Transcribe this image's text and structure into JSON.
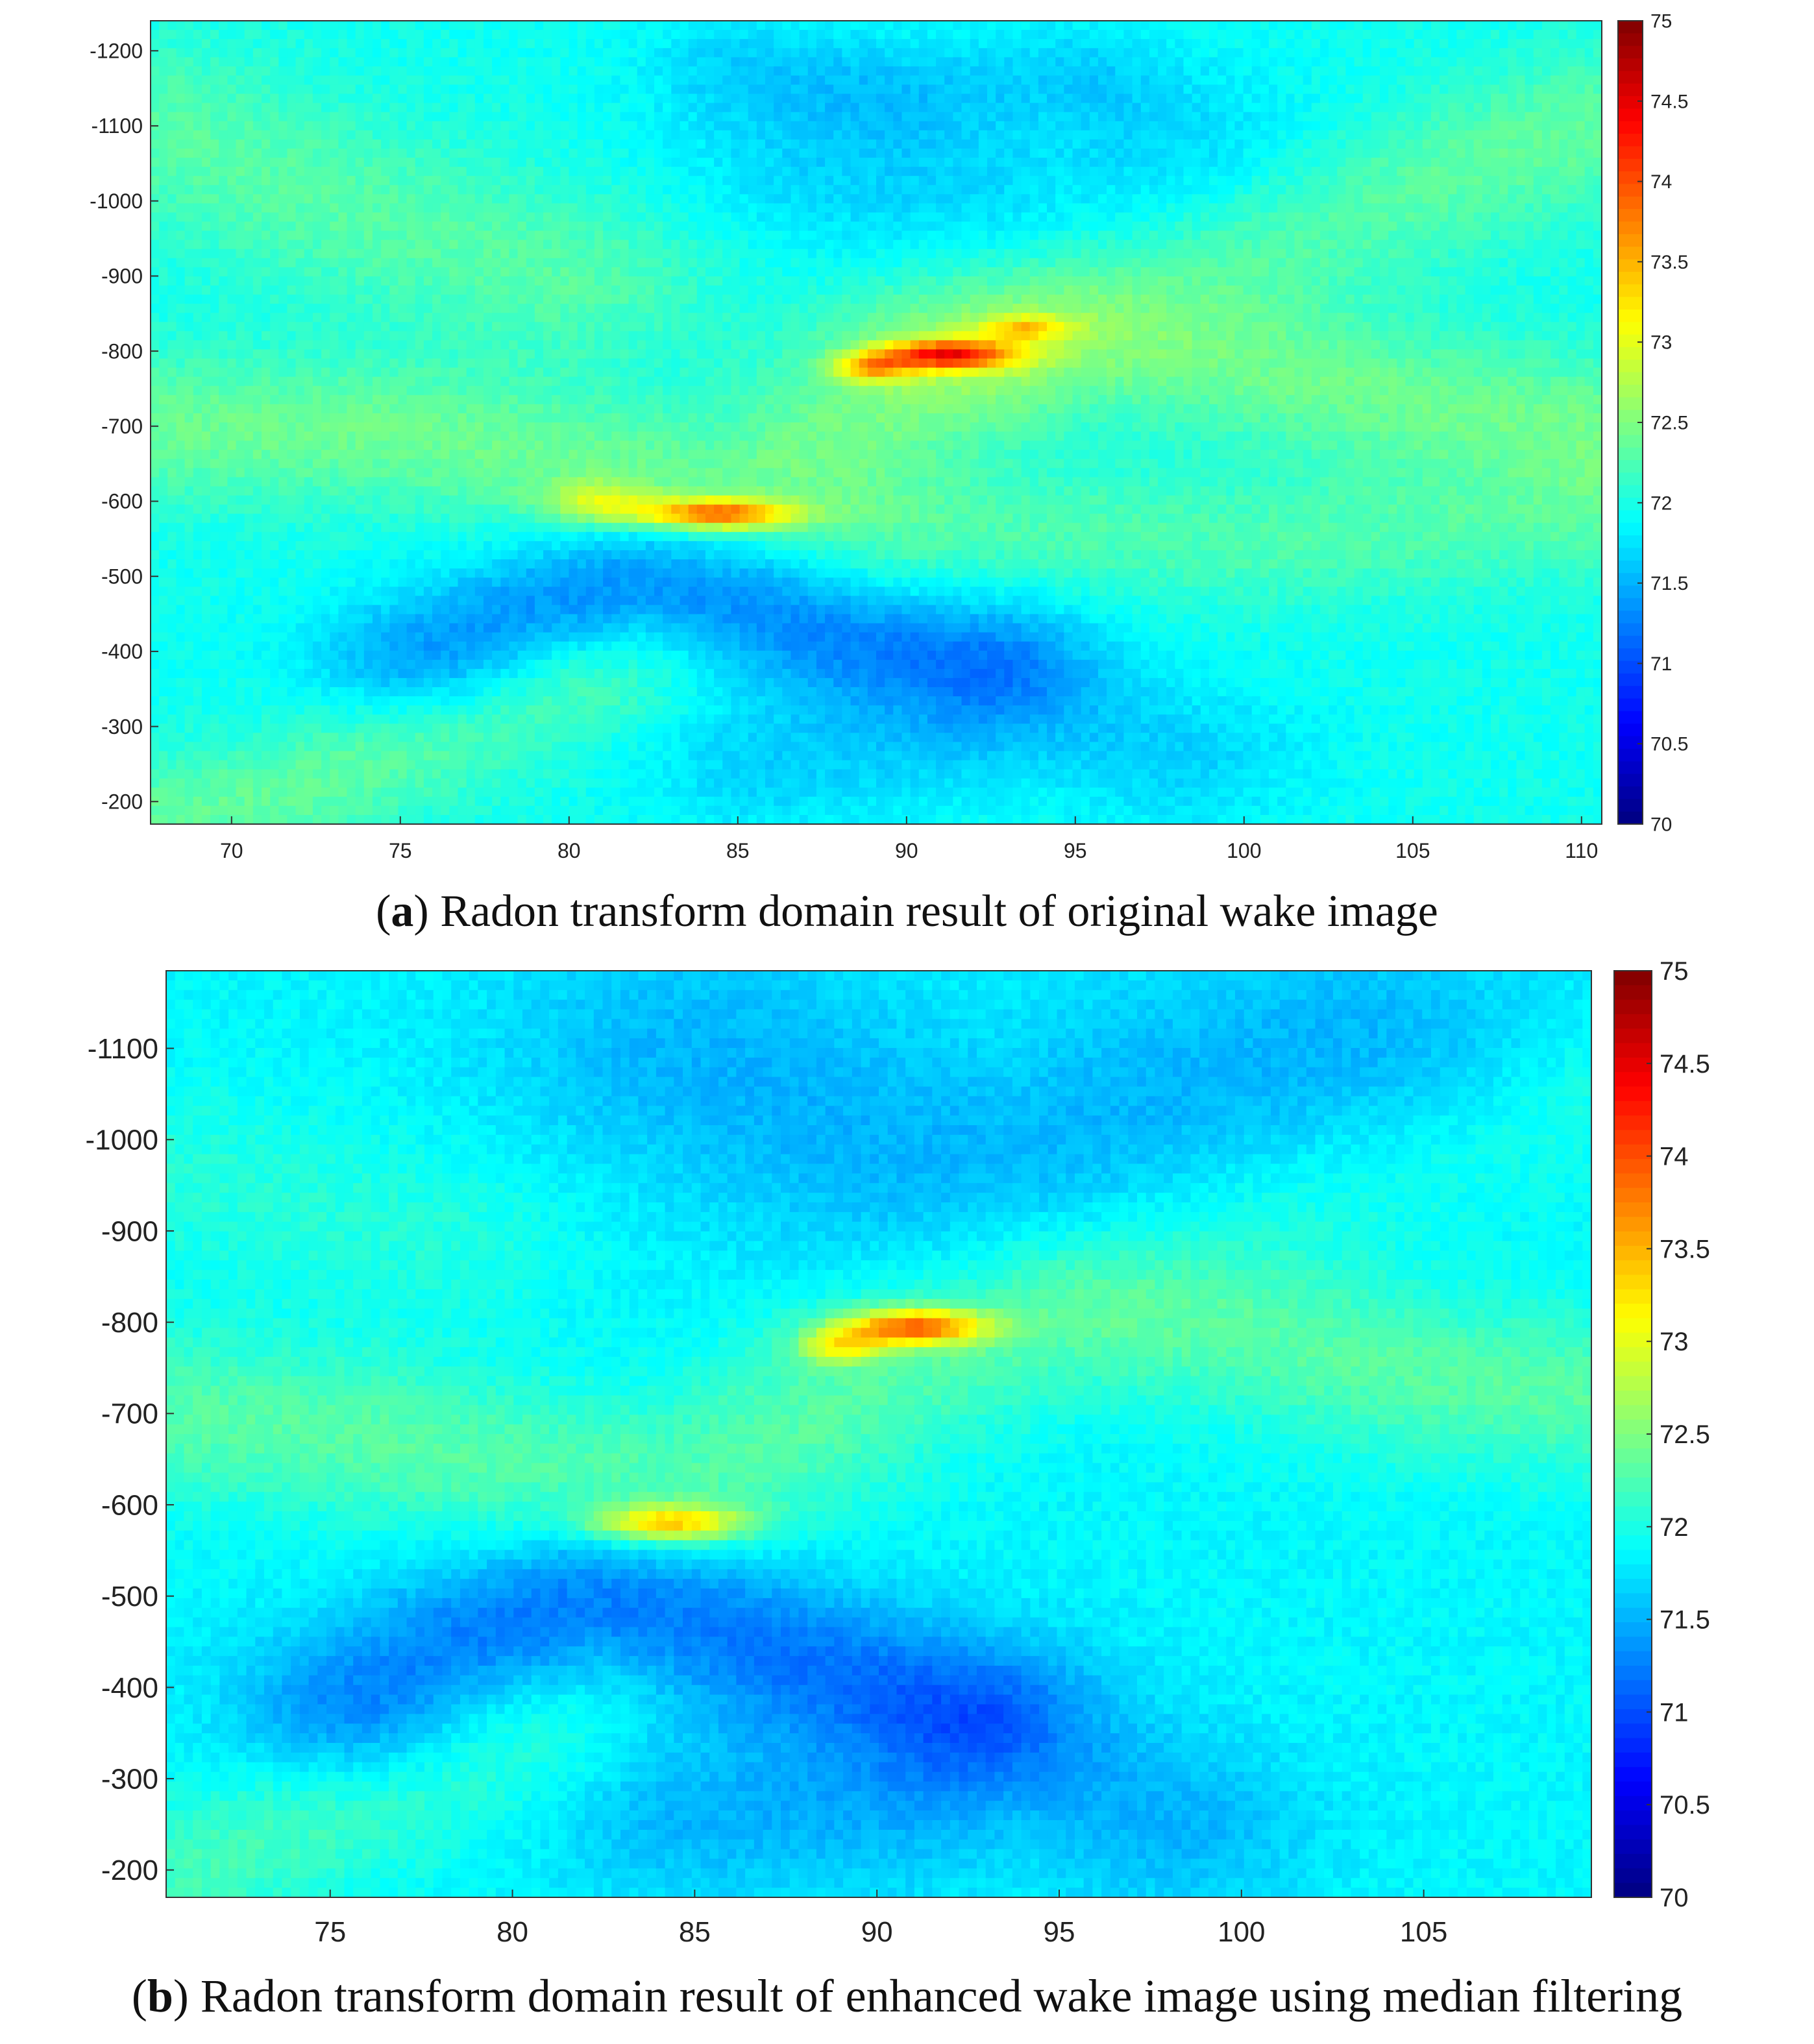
{
  "chart_data": [
    {
      "type": "heatmap",
      "panel": "a",
      "caption_letter": "a",
      "caption_text": "Radon transform domain result of original wake image",
      "xlim": [
        67.6,
        110.6
      ],
      "ylim": [
        -1240,
        -170
      ],
      "xticks": [
        70,
        75,
        80,
        85,
        90,
        95,
        100,
        105,
        110
      ],
      "yticks": [
        -1200,
        -1100,
        -1000,
        -900,
        -800,
        -700,
        -600,
        -500,
        -400,
        -300,
        -200
      ],
      "colorbar": {
        "min": 70,
        "max": 75,
        "ticks": [
          "70",
          "70.5",
          "71",
          "71.5",
          "72",
          "72.5",
          "73",
          "73.5",
          "74",
          "74.5",
          "75"
        ]
      },
      "colormap": "jet",
      "background_level": 71.95,
      "features": [
        {
          "kind": "ridge",
          "points": [
            [
              67.6,
              -700
            ],
            [
              75,
              -690
            ],
            [
              80,
              -650
            ],
            [
              85,
              -620
            ],
            [
              90,
              -740
            ],
            [
              95,
              -820
            ],
            [
              100,
              -780
            ],
            [
              105,
              -730
            ],
            [
              110.6,
              -700
            ]
          ],
          "peak": 72.4,
          "width": 70
        },
        {
          "kind": "ridge",
          "points": [
            [
              67.6,
              -180
            ],
            [
              72,
              -215
            ],
            [
              76,
              -290
            ],
            [
              80,
              -360
            ]
          ],
          "peak": 72.35,
          "width": 55
        },
        {
          "kind": "ridge",
          "points": [
            [
              67.6,
              -1100
            ],
            [
              72,
              -1010
            ],
            [
              76,
              -950
            ],
            [
              80,
              -900
            ]
          ],
          "peak": 72.3,
          "width": 80
        },
        {
          "kind": "ridge",
          "points": [
            [
              92,
              -830
            ],
            [
              96,
              -890
            ],
            [
              100,
              -940
            ],
            [
              105,
              -1020
            ],
            [
              110.6,
              -1100
            ]
          ],
          "peak": 72.35,
          "width": 70
        },
        {
          "kind": "ridge",
          "points": [
            [
              90,
              -560
            ],
            [
              95,
              -560
            ],
            [
              100,
              -545
            ],
            [
              105,
              -560
            ],
            [
              110.6,
              -580
            ]
          ],
          "peak": 72.25,
          "width": 60
        },
        {
          "kind": "trough",
          "points": [
            [
              76,
              -390
            ],
            [
              79,
              -450
            ],
            [
              82,
              -500
            ],
            [
              85,
              -470
            ],
            [
              88,
              -420
            ],
            [
              92,
              -390
            ]
          ],
          "peak": 71.3,
          "width": 60
        },
        {
          "kind": "trough",
          "points": [
            [
              88,
              -1050
            ],
            [
              92,
              -1000
            ],
            [
              95,
              -950
            ],
            [
              98,
              -1050
            ]
          ],
          "peak": 71.65,
          "width": 90
        },
        {
          "kind": "trough",
          "points": [
            [
              86,
              -250
            ],
            [
              90,
              -280
            ],
            [
              94,
              -310
            ],
            [
              98,
              -260
            ]
          ],
          "peak": 71.65,
          "width": 70
        },
        {
          "kind": "trough",
          "points": [
            [
              85,
              -1180
            ],
            [
              90,
              -1150
            ],
            [
              95,
              -1170
            ]
          ],
          "peak": 71.7,
          "width": 50
        },
        {
          "kind": "blob",
          "x": 84.4,
          "y": -583,
          "sx": 1.6,
          "sy": 14,
          "peak": 73.65
        },
        {
          "kind": "blob",
          "x": 81.0,
          "y": -598,
          "sx": 1.2,
          "sy": 20,
          "peak": 72.75
        },
        {
          "kind": "blob",
          "x": 91.2,
          "y": -795,
          "sx": 1.4,
          "sy": 14,
          "peak": 73.75
        },
        {
          "kind": "blob",
          "x": 89.0,
          "y": -778,
          "sx": 0.8,
          "sy": 14,
          "peak": 73.0
        },
        {
          "kind": "blob",
          "x": 93.5,
          "y": -830,
          "sx": 0.9,
          "sy": 12,
          "peak": 72.8
        }
      ]
    },
    {
      "type": "heatmap",
      "panel": "b",
      "caption_letter": "b",
      "caption_text": "Radon transform domain result of enhanced wake image using median filtering",
      "xlim": [
        70.5,
        109.6
      ],
      "ylim": [
        -1185,
        -170
      ],
      "xticks": [
        75,
        80,
        85,
        90,
        95,
        100,
        105
      ],
      "yticks": [
        -1100,
        -1000,
        -900,
        -800,
        -700,
        -600,
        -500,
        -400,
        -300,
        -200
      ],
      "colorbar": {
        "min": 70,
        "max": 75,
        "ticks": [
          "70",
          "70.5",
          "71",
          "71.5",
          "72",
          "72.5",
          "73",
          "73.5",
          "74",
          "74.5",
          "75"
        ]
      },
      "colormap": "jet",
      "background_level": 71.85,
      "features": [
        {
          "kind": "ridge",
          "points": [
            [
              70.5,
              -700
            ],
            [
              75,
              -680
            ],
            [
              80,
              -640
            ],
            [
              85,
              -620
            ],
            [
              90,
              -740
            ],
            [
              95,
              -810
            ],
            [
              100,
              -790
            ],
            [
              105,
              -740
            ],
            [
              109.6,
              -720
            ]
          ],
          "peak": 72.3,
          "width": 65
        },
        {
          "kind": "ridge",
          "points": [
            [
              70.5,
              -190
            ],
            [
              73,
              -230
            ],
            [
              77,
              -290
            ],
            [
              80,
              -350
            ]
          ],
          "peak": 72.2,
          "width": 55
        },
        {
          "kind": "ridge",
          "points": [
            [
              70.5,
              -960
            ],
            [
              74,
              -930
            ],
            [
              78,
              -900
            ]
          ],
          "peak": 72.05,
          "width": 70
        },
        {
          "kind": "ridge",
          "points": [
            [
              96,
              -860
            ],
            [
              100,
              -920
            ],
            [
              105,
              -980
            ],
            [
              109.6,
              -1040
            ]
          ],
          "peak": 72.05,
          "width": 60
        },
        {
          "kind": "trough",
          "points": [
            [
              76,
              -380
            ],
            [
              79,
              -450
            ],
            [
              82,
              -500
            ],
            [
              85,
              -480
            ],
            [
              88,
              -430
            ],
            [
              92,
              -380
            ]
          ],
          "peak": 71.2,
          "width": 60
        },
        {
          "kind": "trough",
          "points": [
            [
              85,
              -1090
            ],
            [
              90,
              -1000
            ],
            [
              94,
              -960
            ],
            [
              98,
              -1040
            ],
            [
              103,
              -1100
            ]
          ],
          "peak": 71.5,
          "width": 100
        },
        {
          "kind": "trough",
          "points": [
            [
              85,
              -260
            ],
            [
              90,
              -270
            ],
            [
              94,
              -320
            ],
            [
              98,
              -250
            ]
          ],
          "peak": 71.5,
          "width": 70
        },
        {
          "kind": "blob",
          "x": 84.3,
          "y": -580,
          "sx": 1.5,
          "sy": 14,
          "peak": 73.2
        },
        {
          "kind": "blob",
          "x": 91.0,
          "y": -795,
          "sx": 1.4,
          "sy": 14,
          "peak": 73.6
        },
        {
          "kind": "blob",
          "x": 89.0,
          "y": -773,
          "sx": 0.8,
          "sy": 13,
          "peak": 72.8
        }
      ]
    }
  ]
}
